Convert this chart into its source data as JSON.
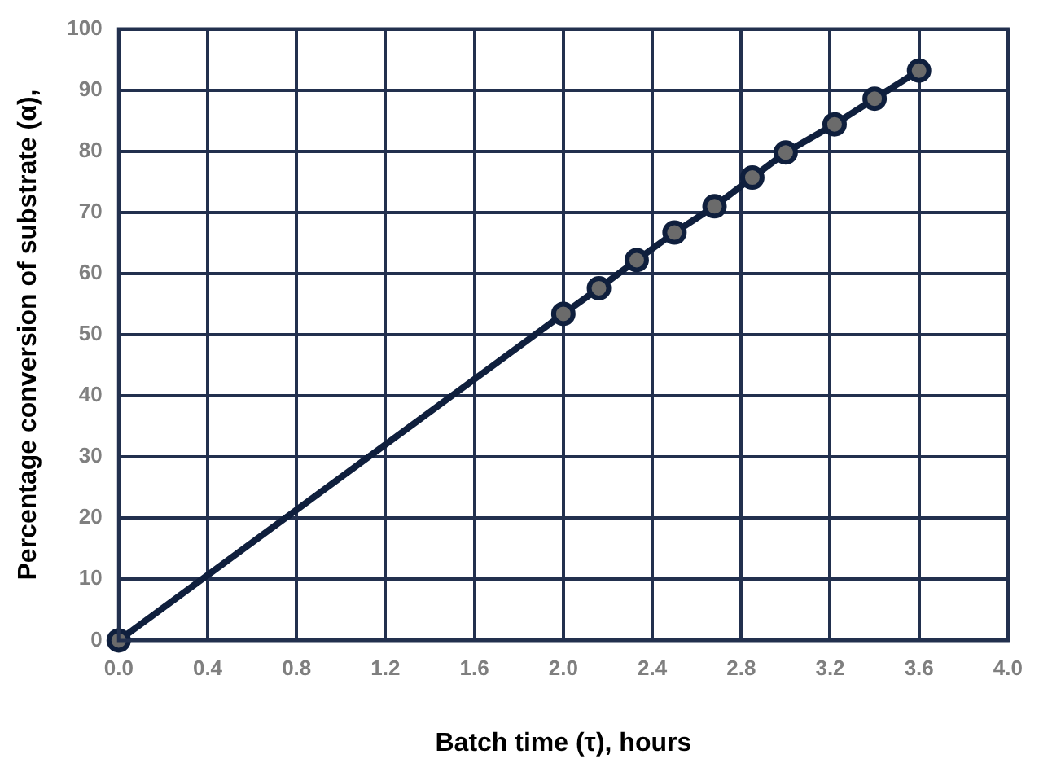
{
  "chart_data": {
    "type": "line",
    "xlabel": "Batch time (τ), hours",
    "ylabel": "Percentage conversion of substrate (α),",
    "x": [
      0,
      2.0,
      2.16,
      2.33,
      2.5,
      2.68,
      2.85,
      3.0,
      3.22,
      3.4,
      3.6
    ],
    "series": [
      {
        "color": "#0f1f3d",
        "values": [
          0,
          53.4,
          57.6,
          62.2,
          66.7,
          71.0,
          75.7,
          79.8,
          84.4,
          88.6,
          93.2
        ]
      }
    ],
    "xlim": [
      0,
      4
    ],
    "xticks": [
      {
        "value": 0,
        "label": "0.0"
      },
      0.4,
      0.8,
      1.2,
      1.6,
      {
        "value": 2,
        "label": "2.0"
      },
      2.4,
      2.8,
      3.2,
      3.6,
      {
        "value": 4,
        "label": "4.0"
      }
    ],
    "ylim": [
      0,
      100
    ],
    "yticks": [
      0,
      10,
      20,
      30,
      40,
      50,
      60,
      70,
      80,
      90,
      100
    ],
    "grid": true,
    "legend": false,
    "marker": "circle",
    "line_style": "solid"
  }
}
